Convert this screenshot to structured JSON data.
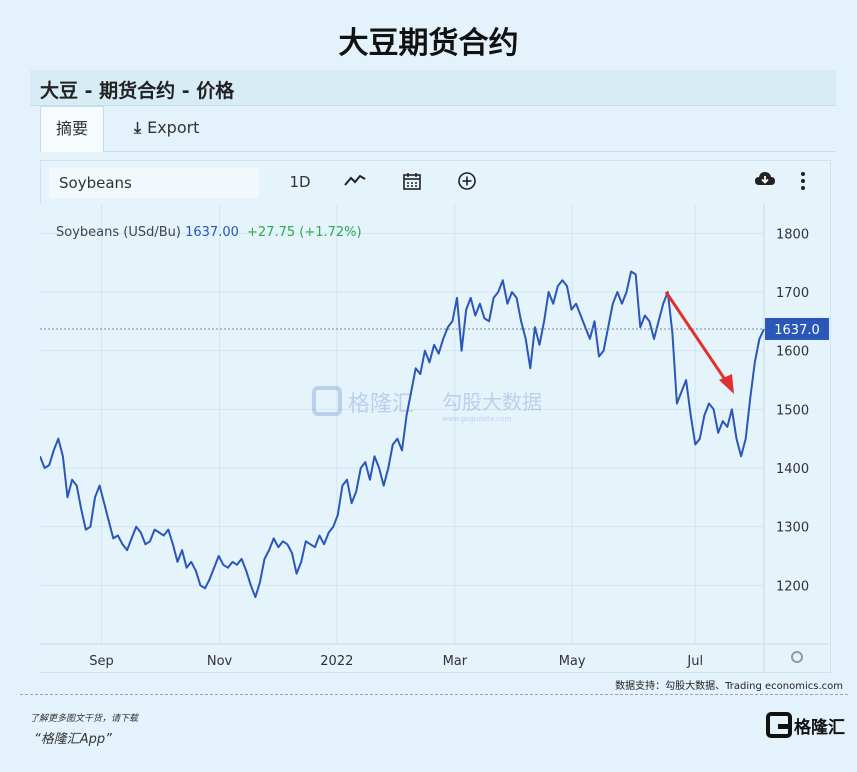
{
  "page_title": "大豆期货合约",
  "header": {
    "title": "大豆 - 期货合约 - 价格"
  },
  "tabs": {
    "summary": "摘要",
    "export": "Export"
  },
  "toolbar": {
    "symbol": "Soybeans",
    "period": "1D"
  },
  "legend": {
    "name": "Soybeans (USd/Bu)",
    "price": "1637.00",
    "change": "+27.75 (+1.72%)"
  },
  "watermark": {
    "brand": "格隆汇",
    "partner": "勾股大数据",
    "partner_url": "www.gogudata.com"
  },
  "footer": {
    "source": "数据支持：勾股大数据、Trading economics.com",
    "promo_line1": "了解更多图文干货，请下载",
    "promo_line2": "“格隆汇App”",
    "logo_text": "格隆汇"
  },
  "colors": {
    "line": "#2a57b8",
    "arrow": "#e03030",
    "bg": "#e3f2fb",
    "price_tag": "#2a57b8",
    "change": "#2fa84f"
  },
  "chart_data": {
    "type": "line",
    "series": [
      {
        "name": "Soybeans (USd/Bu)",
        "values": [
          1420,
          1400,
          1405,
          1430,
          1450,
          1420,
          1350,
          1380,
          1370,
          1330,
          1295,
          1300,
          1350,
          1370,
          1340,
          1310,
          1280,
          1285,
          1270,
          1260,
          1280,
          1300,
          1290,
          1270,
          1275,
          1295,
          1290,
          1285,
          1295,
          1270,
          1240,
          1260,
          1230,
          1240,
          1225,
          1200,
          1195,
          1210,
          1230,
          1250,
          1235,
          1230,
          1240,
          1235,
          1245,
          1225,
          1200,
          1180,
          1205,
          1245,
          1260,
          1280,
          1265,
          1275,
          1270,
          1255,
          1220,
          1240,
          1275,
          1270,
          1265,
          1285,
          1270,
          1290,
          1300,
          1320,
          1370,
          1380,
          1340,
          1360,
          1400,
          1410,
          1380,
          1420,
          1400,
          1370,
          1400,
          1440,
          1450,
          1430,
          1490,
          1530,
          1570,
          1560,
          1600,
          1580,
          1610,
          1595,
          1620,
          1640,
          1650,
          1690,
          1600,
          1670,
          1690,
          1660,
          1680,
          1655,
          1650,
          1690,
          1700,
          1720,
          1680,
          1700,
          1690,
          1650,
          1620,
          1570,
          1640,
          1610,
          1650,
          1700,
          1680,
          1710,
          1720,
          1710,
          1670,
          1680,
          1660,
          1640,
          1620,
          1650,
          1590,
          1600,
          1640,
          1680,
          1700,
          1680,
          1700,
          1735,
          1730,
          1640,
          1660,
          1650,
          1620,
          1650,
          1680,
          1700,
          1630,
          1510,
          1530,
          1550,
          1490,
          1440,
          1450,
          1490,
          1510,
          1500,
          1460,
          1480,
          1470,
          1500,
          1450,
          1420,
          1450,
          1520,
          1580,
          1620,
          1637
        ]
      }
    ],
    "x_ticks": [
      "Sep",
      "Nov",
      "2022",
      "Mar",
      "May",
      "Jul"
    ],
    "y_ticks": [
      1200,
      1300,
      1400,
      1500,
      1600,
      1700,
      1800
    ],
    "ylim": [
      1100,
      1850
    ],
    "last_value_label": "1637.0",
    "grid": true,
    "annotation": {
      "type": "arrow",
      "direction": "down-right"
    }
  }
}
